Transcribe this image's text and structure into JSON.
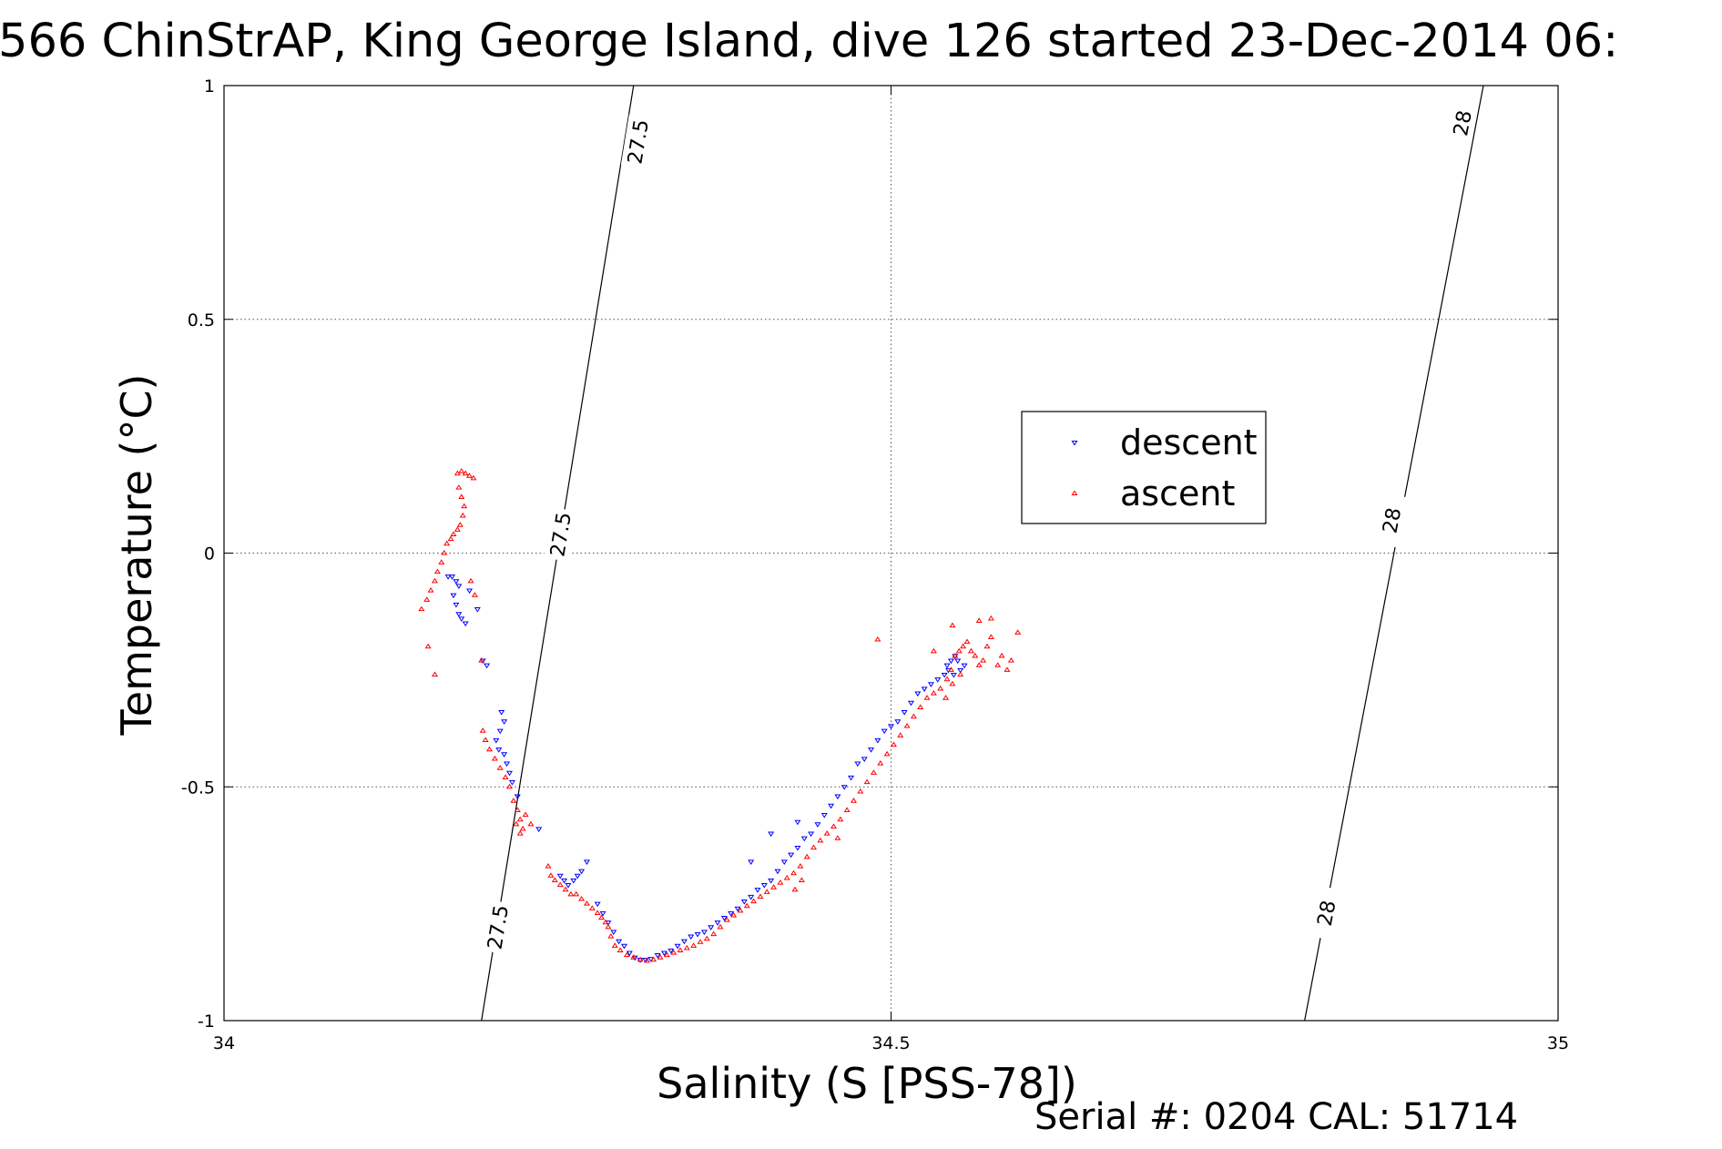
{
  "chart_data": {
    "type": "scatter",
    "title": "566 ChinStrAP, King George Island, dive 126 started 23-Dec-2014 06:",
    "xlabel": "Salinity (S [PSS-78])",
    "ylabel": "Temperature (°C)",
    "xlim": [
      34,
      35
    ],
    "ylim": [
      -1,
      1
    ],
    "xticks": [
      34,
      34.5,
      35
    ],
    "xtick_labels": [
      "34",
      "34.5",
      "35"
    ],
    "yticks": [
      1,
      0.5,
      0,
      -0.5,
      -1
    ],
    "ytick_labels": [
      "1",
      "0.5",
      "0",
      "-0.5",
      "-1"
    ],
    "grid": true,
    "legend_position": "upper-middle-right",
    "footer": "Serial #: 0204  CAL: 51714",
    "isopycnals": [
      {
        "label": "27.5",
        "points": [
          [
            34.193,
            -1.0
          ],
          [
            34.307,
            1.0
          ]
        ],
        "label_positions": [
          [
            34.205,
            -0.8
          ],
          [
            34.252,
            0.04
          ],
          [
            34.31,
            0.88
          ]
        ]
      },
      {
        "label": "28",
        "points": [
          [
            34.81,
            -1.0
          ],
          [
            34.944,
            1.0
          ]
        ],
        "label_positions": [
          [
            34.826,
            -0.77
          ],
          [
            34.875,
            0.07
          ],
          [
            34.928,
            0.92
          ]
        ]
      }
    ],
    "series": [
      {
        "name": "descent",
        "marker": "triangle-down",
        "color": "#0000ff",
        "points": [
          [
            34.168,
            -0.05
          ],
          [
            34.171,
            -0.05
          ],
          [
            34.174,
            -0.06
          ],
          [
            34.176,
            -0.07
          ],
          [
            34.172,
            -0.09
          ],
          [
            34.174,
            -0.11
          ],
          [
            34.176,
            -0.13
          ],
          [
            34.178,
            -0.14
          ],
          [
            34.181,
            -0.15
          ],
          [
            34.184,
            -0.08
          ],
          [
            34.19,
            -0.12
          ],
          [
            34.194,
            -0.23
          ],
          [
            34.197,
            -0.24
          ],
          [
            34.208,
            -0.34
          ],
          [
            34.21,
            -0.36
          ],
          [
            34.207,
            -0.38
          ],
          [
            34.204,
            -0.4
          ],
          [
            34.206,
            -0.42
          ],
          [
            34.21,
            -0.43
          ],
          [
            34.212,
            -0.45
          ],
          [
            34.214,
            -0.47
          ],
          [
            34.216,
            -0.49
          ],
          [
            34.22,
            -0.52
          ],
          [
            34.236,
            -0.59
          ],
          [
            34.252,
            -0.69
          ],
          [
            34.255,
            -0.7
          ],
          [
            34.258,
            -0.71
          ],
          [
            34.262,
            -0.7
          ],
          [
            34.265,
            -0.69
          ],
          [
            34.268,
            -0.68
          ],
          [
            34.272,
            -0.66
          ],
          [
            34.28,
            -0.75
          ],
          [
            34.284,
            -0.77
          ],
          [
            34.288,
            -0.79
          ],
          [
            34.292,
            -0.81
          ],
          [
            34.296,
            -0.83
          ],
          [
            34.3,
            -0.84
          ],
          [
            34.304,
            -0.855
          ],
          [
            34.308,
            -0.865
          ],
          [
            34.312,
            -0.87
          ],
          [
            34.316,
            -0.87
          ],
          [
            34.32,
            -0.868
          ],
          [
            34.325,
            -0.86
          ],
          [
            34.33,
            -0.855
          ],
          [
            34.335,
            -0.85
          ],
          [
            34.34,
            -0.84
          ],
          [
            34.345,
            -0.83
          ],
          [
            34.35,
            -0.82
          ],
          [
            34.355,
            -0.815
          ],
          [
            34.36,
            -0.81
          ],
          [
            34.365,
            -0.8
          ],
          [
            34.37,
            -0.79
          ],
          [
            34.375,
            -0.78
          ],
          [
            34.38,
            -0.77
          ],
          [
            34.385,
            -0.76
          ],
          [
            34.39,
            -0.745
          ],
          [
            34.395,
            -0.735
          ],
          [
            34.4,
            -0.72
          ],
          [
            34.405,
            -0.71
          ],
          [
            34.41,
            -0.7
          ],
          [
            34.415,
            -0.68
          ],
          [
            34.42,
            -0.66
          ],
          [
            34.425,
            -0.645
          ],
          [
            34.43,
            -0.63
          ],
          [
            34.435,
            -0.61
          ],
          [
            34.44,
            -0.6
          ],
          [
            34.445,
            -0.58
          ],
          [
            34.45,
            -0.56
          ],
          [
            34.455,
            -0.54
          ],
          [
            34.46,
            -0.52
          ],
          [
            34.465,
            -0.5
          ],
          [
            34.47,
            -0.48
          ],
          [
            34.475,
            -0.45
          ],
          [
            34.48,
            -0.44
          ],
          [
            34.485,
            -0.42
          ],
          [
            34.49,
            -0.4
          ],
          [
            34.495,
            -0.38
          ],
          [
            34.5,
            -0.37
          ],
          [
            34.505,
            -0.36
          ],
          [
            34.51,
            -0.34
          ],
          [
            34.515,
            -0.32
          ],
          [
            34.52,
            -0.3
          ],
          [
            34.525,
            -0.29
          ],
          [
            34.53,
            -0.28
          ],
          [
            34.535,
            -0.27
          ],
          [
            34.54,
            -0.26
          ],
          [
            34.542,
            -0.24
          ],
          [
            34.545,
            -0.23
          ],
          [
            34.548,
            -0.22
          ],
          [
            34.55,
            -0.23
          ],
          [
            34.552,
            -0.25
          ],
          [
            34.547,
            -0.26
          ],
          [
            34.543,
            -0.25
          ],
          [
            34.555,
            -0.24
          ],
          [
            34.41,
            -0.6
          ],
          [
            34.395,
            -0.66
          ],
          [
            34.43,
            -0.575
          ]
        ]
      },
      {
        "name": "ascent",
        "marker": "triangle-up",
        "color": "#ff0000",
        "points": [
          [
            34.175,
            0.17
          ],
          [
            34.178,
            0.175
          ],
          [
            34.181,
            0.17
          ],
          [
            34.184,
            0.165
          ],
          [
            34.187,
            0.16
          ],
          [
            34.176,
            0.14
          ],
          [
            34.178,
            0.12
          ],
          [
            34.18,
            0.1
          ],
          [
            34.179,
            0.08
          ],
          [
            34.177,
            0.06
          ],
          [
            34.175,
            0.05
          ],
          [
            34.172,
            0.04
          ],
          [
            34.17,
            0.03
          ],
          [
            34.167,
            0.02
          ],
          [
            34.165,
            0.0
          ],
          [
            34.163,
            -0.02
          ],
          [
            34.16,
            -0.04
          ],
          [
            34.158,
            -0.06
          ],
          [
            34.155,
            -0.08
          ],
          [
            34.152,
            -0.1
          ],
          [
            34.148,
            -0.12
          ],
          [
            34.153,
            -0.2
          ],
          [
            34.158,
            -0.26
          ],
          [
            34.188,
            -0.09
          ],
          [
            34.185,
            -0.06
          ],
          [
            34.193,
            -0.23
          ],
          [
            34.194,
            -0.38
          ],
          [
            34.196,
            -0.4
          ],
          [
            34.199,
            -0.42
          ],
          [
            34.203,
            -0.44
          ],
          [
            34.207,
            -0.46
          ],
          [
            34.211,
            -0.48
          ],
          [
            34.214,
            -0.5
          ],
          [
            34.217,
            -0.53
          ],
          [
            34.22,
            -0.55
          ],
          [
            34.222,
            -0.57
          ],
          [
            34.224,
            -0.59
          ],
          [
            34.222,
            -0.6
          ],
          [
            34.219,
            -0.58
          ],
          [
            34.226,
            -0.56
          ],
          [
            34.23,
            -0.58
          ],
          [
            34.243,
            -0.67
          ],
          [
            34.245,
            -0.69
          ],
          [
            34.248,
            -0.7
          ],
          [
            34.252,
            -0.71
          ],
          [
            34.256,
            -0.72
          ],
          [
            34.26,
            -0.73
          ],
          [
            34.264,
            -0.73
          ],
          [
            34.268,
            -0.74
          ],
          [
            34.272,
            -0.75
          ],
          [
            34.276,
            -0.76
          ],
          [
            34.28,
            -0.77
          ],
          [
            34.283,
            -0.78
          ],
          [
            34.286,
            -0.79
          ],
          [
            34.288,
            -0.8
          ],
          [
            34.29,
            -0.82
          ],
          [
            34.293,
            -0.84
          ],
          [
            34.297,
            -0.85
          ],
          [
            34.302,
            -0.86
          ],
          [
            34.307,
            -0.865
          ],
          [
            34.312,
            -0.87
          ],
          [
            34.317,
            -0.872
          ],
          [
            34.322,
            -0.87
          ],
          [
            34.327,
            -0.865
          ],
          [
            34.332,
            -0.86
          ],
          [
            34.337,
            -0.855
          ],
          [
            34.342,
            -0.85
          ],
          [
            34.347,
            -0.845
          ],
          [
            34.352,
            -0.84
          ],
          [
            34.357,
            -0.832
          ],
          [
            34.362,
            -0.825
          ],
          [
            34.367,
            -0.815
          ],
          [
            34.372,
            -0.8
          ],
          [
            34.377,
            -0.785
          ],
          [
            34.382,
            -0.775
          ],
          [
            34.387,
            -0.765
          ],
          [
            34.392,
            -0.755
          ],
          [
            34.397,
            -0.745
          ],
          [
            34.402,
            -0.735
          ],
          [
            34.407,
            -0.725
          ],
          [
            34.412,
            -0.715
          ],
          [
            34.417,
            -0.705
          ],
          [
            34.422,
            -0.695
          ],
          [
            34.427,
            -0.685
          ],
          [
            34.432,
            -0.67
          ],
          [
            34.437,
            -0.65
          ],
          [
            34.442,
            -0.63
          ],
          [
            34.447,
            -0.615
          ],
          [
            34.452,
            -0.6
          ],
          [
            34.457,
            -0.585
          ],
          [
            34.462,
            -0.57
          ],
          [
            34.467,
            -0.55
          ],
          [
            34.472,
            -0.53
          ],
          [
            34.477,
            -0.51
          ],
          [
            34.482,
            -0.49
          ],
          [
            34.487,
            -0.47
          ],
          [
            34.492,
            -0.45
          ],
          [
            34.497,
            -0.43
          ],
          [
            34.502,
            -0.41
          ],
          [
            34.507,
            -0.39
          ],
          [
            34.512,
            -0.37
          ],
          [
            34.517,
            -0.35
          ],
          [
            34.522,
            -0.33
          ],
          [
            34.527,
            -0.31
          ],
          [
            34.532,
            -0.3
          ],
          [
            34.537,
            -0.29
          ],
          [
            34.542,
            -0.27
          ],
          [
            34.545,
            -0.25
          ],
          [
            34.548,
            -0.22
          ],
          [
            34.551,
            -0.21
          ],
          [
            34.554,
            -0.2
          ],
          [
            34.557,
            -0.19
          ],
          [
            34.56,
            -0.21
          ],
          [
            34.563,
            -0.22
          ],
          [
            34.566,
            -0.24
          ],
          [
            34.569,
            -0.23
          ],
          [
            34.572,
            -0.2
          ],
          [
            34.575,
            -0.18
          ],
          [
            34.58,
            -0.24
          ],
          [
            34.583,
            -0.22
          ],
          [
            34.587,
            -0.25
          ],
          [
            34.59,
            -0.23
          ],
          [
            34.595,
            -0.17
          ],
          [
            34.546,
            -0.155
          ],
          [
            34.566,
            -0.145
          ],
          [
            34.532,
            -0.21
          ],
          [
            34.575,
            -0.14
          ],
          [
            34.49,
            -0.185
          ],
          [
            34.546,
            -0.28
          ],
          [
            34.541,
            -0.31
          ],
          [
            34.552,
            -0.26
          ],
          [
            34.433,
            -0.7
          ],
          [
            34.428,
            -0.72
          ],
          [
            34.46,
            -0.61
          ]
        ]
      }
    ]
  }
}
